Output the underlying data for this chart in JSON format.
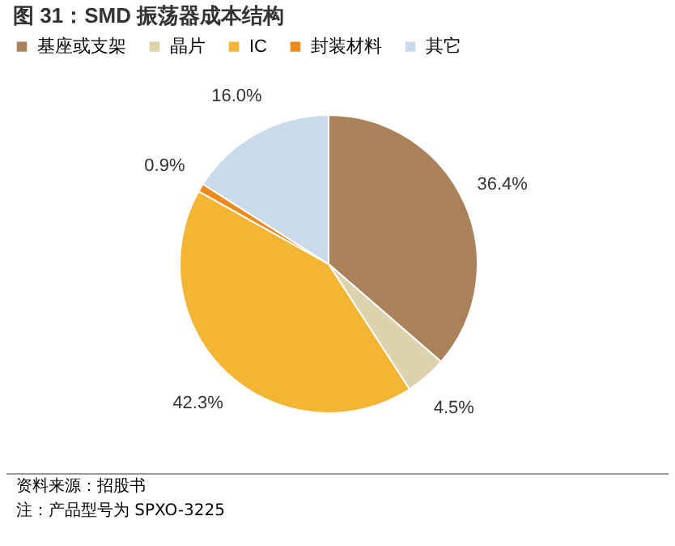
{
  "chart_data": {
    "type": "pie",
    "title": "图 31：SMD 振荡器成本结构",
    "categories": [
      "基座或支架",
      "晶片",
      "IC",
      "封装材料",
      "其它"
    ],
    "values": [
      36.4,
      4.5,
      42.3,
      0.9,
      16.0
    ],
    "value_labels": [
      "36.4%",
      "4.5%",
      "42.3%",
      "0.9%",
      "16.0%"
    ],
    "colors": [
      "#a9825a",
      "#dcd2ae",
      "#f3b533",
      "#ee8a1c",
      "#c9dbe9"
    ],
    "legend": "top",
    "annotations": [
      "资料来源：招股书",
      "注：产品型号为 SPXO-3225"
    ]
  }
}
